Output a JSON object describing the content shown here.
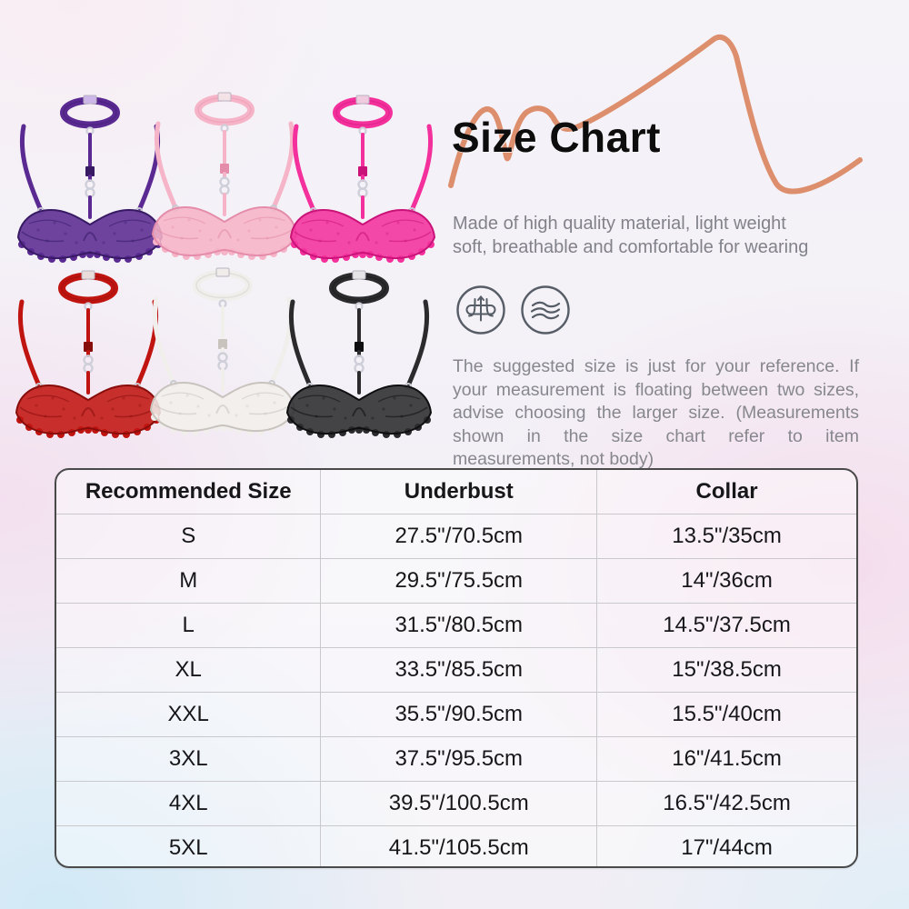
{
  "header": {
    "title": "Size Chart"
  },
  "description": {
    "line1": "Made of high quality material, light weight",
    "line2": "soft, breathable and comfortable for wearing"
  },
  "note": "The suggested size is just for your reference. If your measurement is floating between two sizes, advise choosing the larger size. (Measurements shown in the size chart refer to item measurements, not body)",
  "care_icons": [
    {
      "name": "breathable-fabric-icon"
    },
    {
      "name": "soft-wave-icon"
    }
  ],
  "products": [
    {
      "name": "purple",
      "main": "#5a2a92",
      "dark": "#371a63",
      "clasp": "#cdb6e8"
    },
    {
      "name": "pink",
      "main": "#f6b4c8",
      "dark": "#e48ca9",
      "clasp": "#f3e2e6"
    },
    {
      "name": "hot-pink",
      "main": "#f3309c",
      "dark": "#c91379",
      "clasp": "#f0cade"
    },
    {
      "name": "red",
      "main": "#c01410",
      "dark": "#870d0b",
      "clasp": "#e9dddb"
    },
    {
      "name": "white",
      "main": "#f1efec",
      "dark": "#c9c3be",
      "clasp": "#efece9"
    },
    {
      "name": "black",
      "main": "#2b2b2e",
      "dark": "#0e0e10",
      "clasp": "#e6e4e7"
    }
  ],
  "size_chart": {
    "columns": [
      "Recommended Size",
      "Underbust",
      "Collar"
    ],
    "rows": [
      [
        "S",
        "27.5\"/70.5cm",
        "13.5\"/35cm"
      ],
      [
        "M",
        "29.5\"/75.5cm",
        "14\"/36cm"
      ],
      [
        "L",
        "31.5\"/80.5cm",
        "14.5\"/37.5cm"
      ],
      [
        "XL",
        "33.5\"/85.5cm",
        "15\"/38.5cm"
      ],
      [
        "XXL",
        "35.5\"/90.5cm",
        "15.5\"/40cm"
      ],
      [
        "3XL",
        "37.5\"/95.5cm",
        "16\"/41.5cm"
      ],
      [
        "4XL",
        "39.5\"/100.5cm",
        "16.5\"/42.5cm"
      ],
      [
        "5XL",
        "41.5\"/105.5cm",
        "17\"/44cm"
      ]
    ]
  },
  "decor": {
    "squiggle_color": "#dd8e6d"
  }
}
